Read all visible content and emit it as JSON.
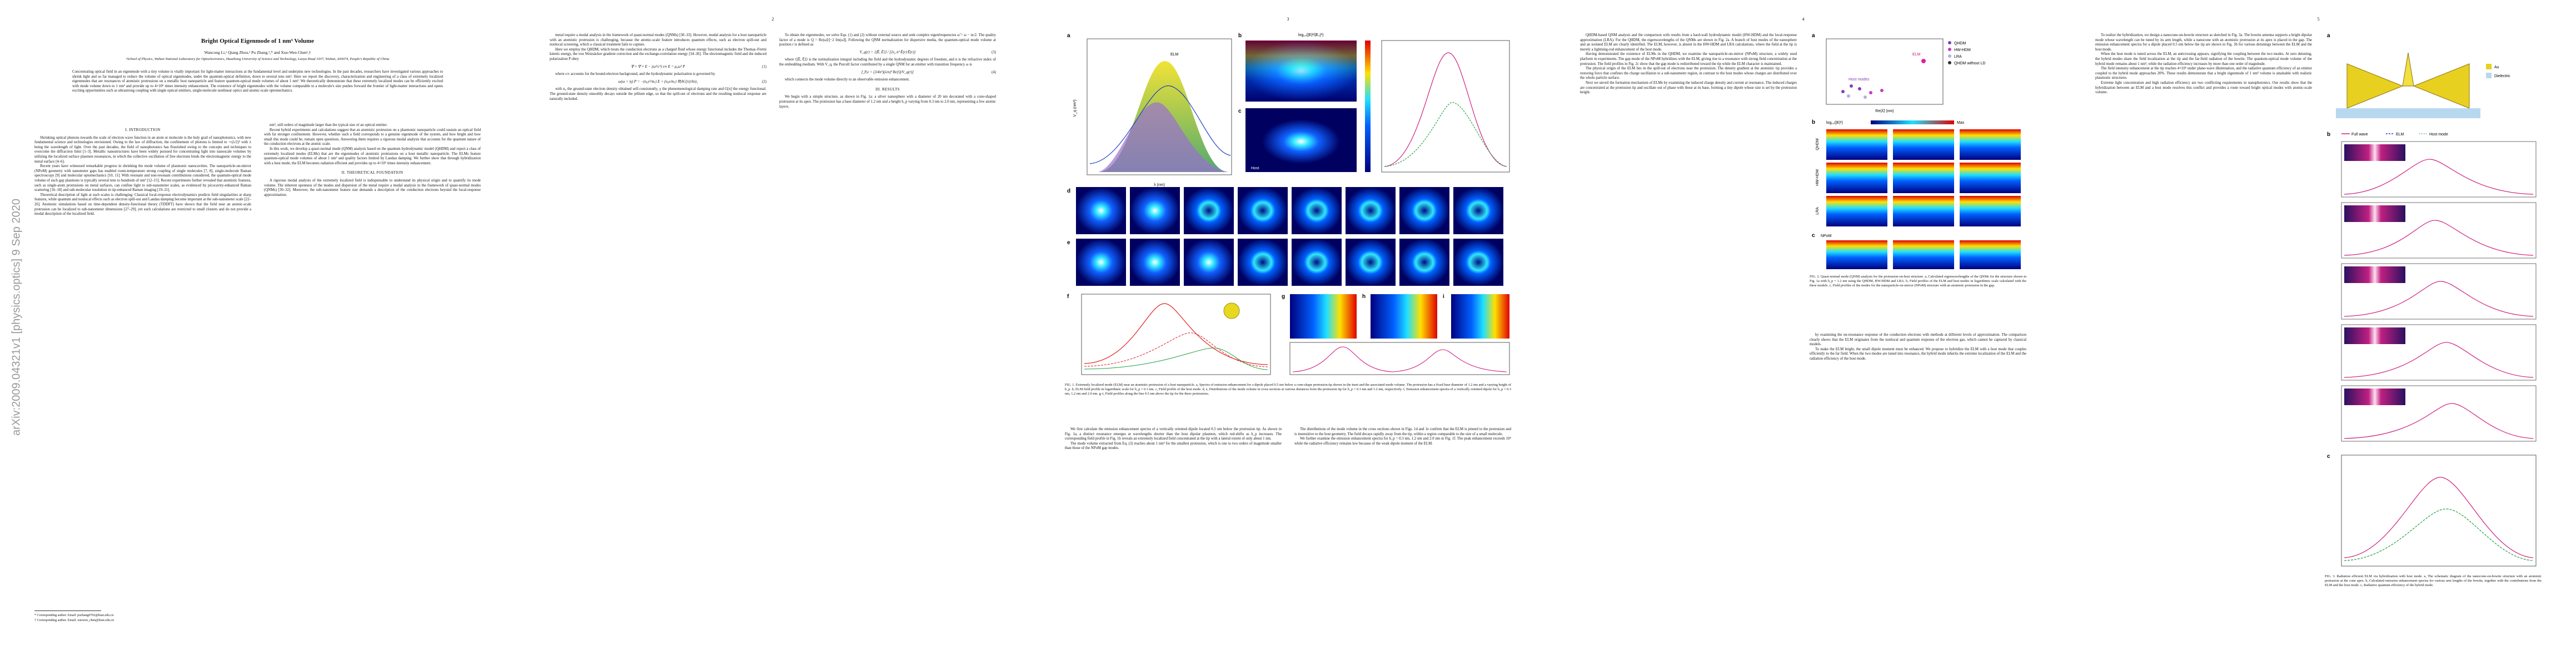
{
  "arxiv_stamp": "arXiv:2009.04321v1  [physics.optics]  9 Sep 2020",
  "page_numbers": [
    "2",
    "3",
    "4",
    "5"
  ],
  "header": {
    "title": "Bright Optical Eigenmode of 1 nm³ Volume",
    "authors": "Wancong Li,¹ Qiang Zhou,¹ Pu Zhang,¹,* and Xue-Wen Chen¹,†",
    "affiliation": "¹School of Physics, Wuhan National Laboratory for Optoelectronics, Huazhong University of Science and Technology, Luoyu Road 1037, Wuhan, 430074, People's Republic of China",
    "abstract": "Concentrating optical field in an eigenmode with a tiny volume is vitally important for light-matter interactions at the fundamental level and underpins new technologies. In the past decades, researchers have investigated various approaches to shrink light and so far managed to reduce the volume of optical eigenmodes, under the quantum-optical definition, down to several tens nm³. Here we report the discovery, characterization and engineering of a class of extremely localized eigenmodes that are resonances of atomistic protrusions on a metallic host nanoparticle and feature quantum-optical mode volumes of about 1 nm³. We theoretically demonstrate that these extremely localized modes can be efficiently excited with mode volume down to 1 nm³ and provide up to 4×10⁶ times intensity enhancement. The existence of bright eigenmodes with the volume comparable to a molecule's size pushes forward the frontier of light-matter interactions and opens exciting opportunities such as ultrastrong coupling with single optical emitters, single-molecule nonlinear optics and atomic-scale optomechanics."
  },
  "columns": [
    [
      {
        "heading": "I.  INTRODUCTION"
      },
      {
        "text": "Shrinking optical photons towards the scale of electron wave function in an atom or molecule is the holy grail of nanophotonics, with new fundamental science and technologies envisioned. Owing to the law of diffraction, the confinement of photons is limited to ∼(λ/2)³ with λ being the wavelength of light. Over the past decades, the field of nanophotonics has flourished owing to the concepts and techniques to overcome the diffraction limit [1–3]. Metallic nanostructures have been widely pursued for concentrating light into nanoscale volumes by utilizing the localized surface plasmon resonances, in which the collective oscillation of free electrons binds the electromagnetic energy to the metal surface [4–6]."
      },
      {
        "text": "Recent years have witnessed remarkable progress in shrinking the mode volume of plasmonic nanocavities. The nanoparticle-on-mirror (NPoM) geometry with nanometer gaps has enabled room-temperature strong coupling of single molecules [7, 8], single-molecule Raman spectroscopy [9] and molecular optomechanics [10, 11]. With resonant and non-resonant contributions considered, the quantum-optical mode volume of such gap plasmons is typically several tens to hundreds of nm³ [12–15]. Recent experiments further revealed that atomistic features, such as single-atom protrusions on metal surfaces, can confine light to sub-nanometer scales, as evidenced by picocavity-enhanced Raman scattering [16–18] and sub-molecular resolution in tip-enhanced Raman imaging [19–21]."
      },
      {
        "text": "Theoretical description of light at such scales is challenging. Classical local-response electrodynamics predicts field singularities at sharp features, while quantum and nonlocal effects such as electron spill-out and Landau damping become important at the sub-nanometer scale [22–26]. Atomistic simulations based on time-dependent density-functional theory (TDDFT) have shown that the field near an atomic-scale protrusion can be localized to sub-nanometer dimensions [27–29], yet such calculations are restricted to small clusters and do not provide a modal description of the localized field."
      }
    ],
    [
      {
        "text": "nm³, still orders of magnitude larger than the typical size of an optical emitter."
      },
      {
        "text": "Recent hybrid experiments and calculations suggest that an atomistic protrusion on a plasmonic nanoparticle could sustain an optical field with far stronger confinement. However, whether such a field corresponds to a genuine eigenmode of the system, and how bright and how small this mode could be, remain open questions. Answering them requires a rigorous modal analysis that accounts for the quantum nature of the conduction electrons at the atomic scale."
      },
      {
        "text": "In this work, we develop a quasi-normal mode (QNM) analysis based on the quantum hydrodynamic model (QHDM) and report a class of extremely localized modes (ELMs) that are the eigenmodes of atomistic protrusions on a host metallic nanoparticle. The ELMs feature quantum-optical mode volumes of about 1 nm³ and quality factors limited by Landau damping. We further show that through hybridization with a host mode, the ELM becomes radiation efficient and provides up to 4×10⁶ times intensity enhancement."
      },
      {
        "heading": "II.  THEORETICAL FOUNDATION"
      },
      {
        "text": "A rigorous modal analysis of the extremely localized field is indispensable to understand its physical origin and to quantify its mode volume. The inherent openness of the modes and dispersion of the metal require a modal analysis in the framework of quasi-normal modes (QNMs) [30–32]. Moreover, the sub-nanometer feature size demands a description of the conduction electrons beyond the local-response approximation."
      }
    ],
    [
      {
        "text": "metal require a modal analysis in the framework of quasi-normal modes (QNMs) [30–33]. However, modal analysis for a host nanoparticle with an atomistic protrusion is challenging, because the atomic-scale feature introduces quantum effects, such as electron spill-out and nonlocal screening, which a classical treatment fails to capture."
      },
      {
        "text": "Here we employ the QHDM, which treats the conduction electrons as a charged fluid whose energy functional includes the Thomas–Fermi kinetic energy, the von Weizsäcker gradient correction and the exchange-correlation energy [34–36]. The electromagnetic field and the induced polarization P obey"
      },
      {
        "equation": "∇ × ∇ × E − (ω²/c²) ε∞ E = μ₀ω² P",
        "number": "(1)"
      },
      {
        "text": "where ε∞ accounts for the bound-electron background, and the hydrodynamic polarization is governed by"
      },
      {
        "equation": "ω(ω + iγ) P = −(n₀e²/mₑ) E + (n₀e/mₑ) ∇(δG[n]/δn)₁",
        "number": "(2)"
      },
      {
        "text": "with n₀ the ground-state electron density obtained self-consistently, γ the phenomenological damping rate and G[n] the energy functional. The ground-state density smoothly decays outside the jellium edge, so that the spill-out of electrons and the resulting nonlocal response are naturally included."
      }
    ],
    [
      {
        "text": "To obtain the eigenmodes, we solve Eqs. (1) and (2) without external source and seek complex eigenfrequencies ω̃ = ω − iκ/2. The quality factor of a mode is Q = Re(ω̃)/[−2 Im(ω̃)]. Following the QNM normalization for dispersive media, the quantum-optical mode volume at position r is defined as"
      },
      {
        "equation": "V_q(r) = ⟨⟨Ẽ, Ẽ⟩⟩ / [2ε₀ n² Ẽ(r)·Ẽ(r)]",
        "number": "(3)"
      },
      {
        "text": "where ⟨⟨Ẽ, Ẽ⟩⟩ is the normalization integral including the field and the hydrodynamic degrees of freedom, and n is the refractive index of the embedding medium. With V_q, the Purcell factor contributed by a single QNM for an emitter with transition frequency ω is"
      },
      {
        "equation": "f_P,e = (3/4π²)(λ/n)³ Re[Q/V_q(r)]",
        "number": "(4)"
      },
      {
        "text": "which connects the mode volume directly to an observable emission enhancement."
      },
      {
        "heading": "III.  RESULTS"
      },
      {
        "text": "We begin with a simple structure, as shown in Fig. 1a: a silver nanosphere with a diameter of 20 nm decorated with a cone-shaped protrusion at its apex. The protrusion has a base diameter of 1.2 nm and a height h_p varying from 0.3 nm to 2.0 nm, representing a few atomic layers."
      }
    ],
    [
      {
        "text": "We first calculate the emission enhancement spectra of a vertically oriented dipole located 0.5 nm below the protrusion tip. As shown in Fig. 1a, a distinct resonance emerges at wavelengths shorter than the host dipolar plasmon, which red-shifts as h_p increases. The corresponding field profile in Fig. 1b reveals an extremely localized field concentrated at the tip with a lateral extent of only about 1 nm."
      },
      {
        "text": "The mode volume extracted from Eq. (3) reaches about 1 nm³ for the smallest protrusion, which is one to two orders of magnitude smaller than those of the NPoM gap modes."
      }
    ],
    [
      {
        "text": "The distributions of the mode volume in the cross sections shown in Figs. 1d and 1e confirm that the ELM is pinned to the protrusion and is insensitive to the host geometry. The field decays rapidly away from the tip, within a region comparable to the size of a small molecule."
      },
      {
        "text": "We further examine the emission enhancement spectra for h_p = 0.3 nm, 1.2 nm and 2.0 nm in Fig. 1f. The peak enhancement exceeds 10⁶ while the radiative efficiency remains low because of the weak dipole moment of the ELM."
      }
    ],
    [
      {
        "text": "QHDM-based QNM analysis and the comparison with results from a hard-wall hydrodynamic model (HW-HDM) and the local-response approximation (LRA). For the QHDM, the eigenwavelengths of the QNMs are shown in Fig. 2a. A branch of host modes of the nanosphere and an isolated ELM are clearly identified. The ELM, however, is absent in the HW-HDM and LRA calculations, where the field at the tip is merely a lightning-rod enhancement of the host mode."
      },
      {
        "text": "Having demonstrated the existence of ELMs in the QHDM, we examine the nanoparticle-on-mirror (NPoM) structure, a widely used platform in experiments. The gap mode of the NPoM hybridizes with the ELM, giving rise to a resonance with strong field concentration at the protrusion. The field profiles in Fig. 2c show that the gap mode is redistributed toward the tip while the ELM character is maintained."
      },
      {
        "text": "The physical origin of the ELM lies in the spill-out of electrons near the protrusion. The density gradient at the atomistic tip provides a restoring force that confines the charge oscillation to a sub-nanometer region, in contrast to the host modes whose charges are distributed over the whole particle surface."
      },
      {
        "text": "Next we unveil the formation mechanism of ELMs by examining the induced charge density and current at resonance. The induced charges are concentrated at the protrusion tip and oscillate out of phase with those at its base, forming a tiny dipole whose size is set by the protrusion height."
      }
    ],
    [
      {
        "text": "by examining the on-resonance response of the conduction electrons with methods at different levels of approximation. The comparison clearly shows that the ELM originates from the nonlocal and quantum response of the electron gas, which cannot be captured by classical models."
      },
      {
        "text": "To make the ELM bright, the small dipole moment must be enhanced. We propose to hybridize the ELM with a host mode that couples efficiently to the far field. When the two modes are tuned into resonance, the hybrid mode inherits the extreme localization of the ELM and the radiation efficiency of the host mode."
      }
    ],
    [
      {
        "text": "To realize the hybridization, we design a nanocone-on-bowtie structure as sketched in Fig. 3a. The bowtie antenna supports a bright dipolar mode whose wavelength can be tuned by its arm length, while a nanocone with an atomistic protrusion at its apex is placed in the gap. The emission enhancement spectra for a dipole placed 0.5 nm below the tip are shown in Fig. 3b for various detunings between the ELM and the host mode."
      },
      {
        "text": "When the host mode is tuned across the ELM, an anticrossing appears, signifying the coupling between the two modes. At zero detuning, the hybrid modes share the field localization at the tip and the far-field radiation of the bowtie. The quantum-optical mode volume of the hybrid mode remains about 1 nm³, while the radiation efficiency increases by more than one order of magnitude."
      },
      {
        "text": "The field intensity enhancement at the tip reaches 4×10⁶ under plane-wave illumination, and the radiative quantum efficiency of an emitter coupled to the hybrid mode approaches 20%. These results demonstrate that a bright eigenmode of 1 nm³ volume is attainable with realistic plasmonic structures."
      },
      {
        "text": "Extreme light concentration and high radiation efficiency are two conflicting requirements in nanophotonics. Our results show that the hybridization between an ELM and a host mode resolves this conflict and provides a route toward bright optical modes with atomic-scale volume."
      }
    ]
  ],
  "footnotes": [
    "* Corresponding author. Email: puzhang0702@hust.edu.cn",
    "† Corresponding author. Email: xuewen_chen@hust.edu.cn"
  ],
  "figures": [
    {
      "caption": "FIG. 1. Extremely localized mode (ELM) near an atomistic protrusion of a host nanoparticle. a, Spectra of emission enhancement for a dipole placed 0.5 nm below a cone-shape protrusion tip shown in the inset and the associated mode volume. The protrusion has a fixed base diameter of 1.2 nm and a varying height of h_p. b, ELM field profile in logarithmic scale for h_p = 0.3 nm. c, Field profile of the host mode. d, e, Distributions of the mode volume in cross sections at various distances from the protrusion tip for h_p = 0.3 nm and 1.2 nm, respectively. f, Emission enhancement spectra of a vertically oriented dipole for h_p = 0.3 nm, 1.2 nm and 2.0 nm. g–i, Field profiles along the line 0.5 nm above the tip for the three protrusions.",
      "panels": [
        "a",
        "b",
        "c",
        "d",
        "e",
        "f",
        "g",
        "h",
        "i"
      ],
      "labels": [
        "log₁₀(|E|²/|E₀|²)",
        "λ (nm)",
        "V_q (nm³)",
        "ELM",
        "Host"
      ]
    },
    {
      "caption": "FIG. 2. Quasi-normal mode (QNM) analysis for the protrusion-on-host structure. a, Calculated eigenwavelengths of the QNMs for the structure shown in Fig. 1a with h_p = 1.2 nm using the QHDM, HW-HDM and LRA. b, Field profiles of the ELM and host modes in logarithmic scale calculated with the three models. c, Field profiles of the modes for the nanoparticle-on-mirror (NPoM) structure with an atomistic protrusion in the gap.",
      "panels": [
        "a",
        "b",
        "c"
      ],
      "legend": [
        "QHDM",
        "HW-HDM",
        "LRA",
        "QHDM without LD"
      ],
      "labels": [
        "Re(λ̃) (nm)",
        "ELM",
        "Host modes",
        "log₁₀(|E|²)",
        "Max",
        "NPoM"
      ]
    },
    {
      "caption": "FIG. 3. Radiation efficient ELM via hybridization with host mode. a, The schematic diagram of the nanocone-on-bowtie structure with an atomistic protrusion at the cone apex. b, Calculated emission enhancement spectra for various arm lengths of the bowtie, together with the contributions from the ELM and the host mode. c, Radiative quantum efficiency of the hybrid mode.",
      "panels": [
        "a",
        "b",
        "c"
      ],
      "legend": [
        "Au",
        "Dielectric",
        "Full wave",
        "ELM",
        "Host mode"
      ]
    }
  ]
}
